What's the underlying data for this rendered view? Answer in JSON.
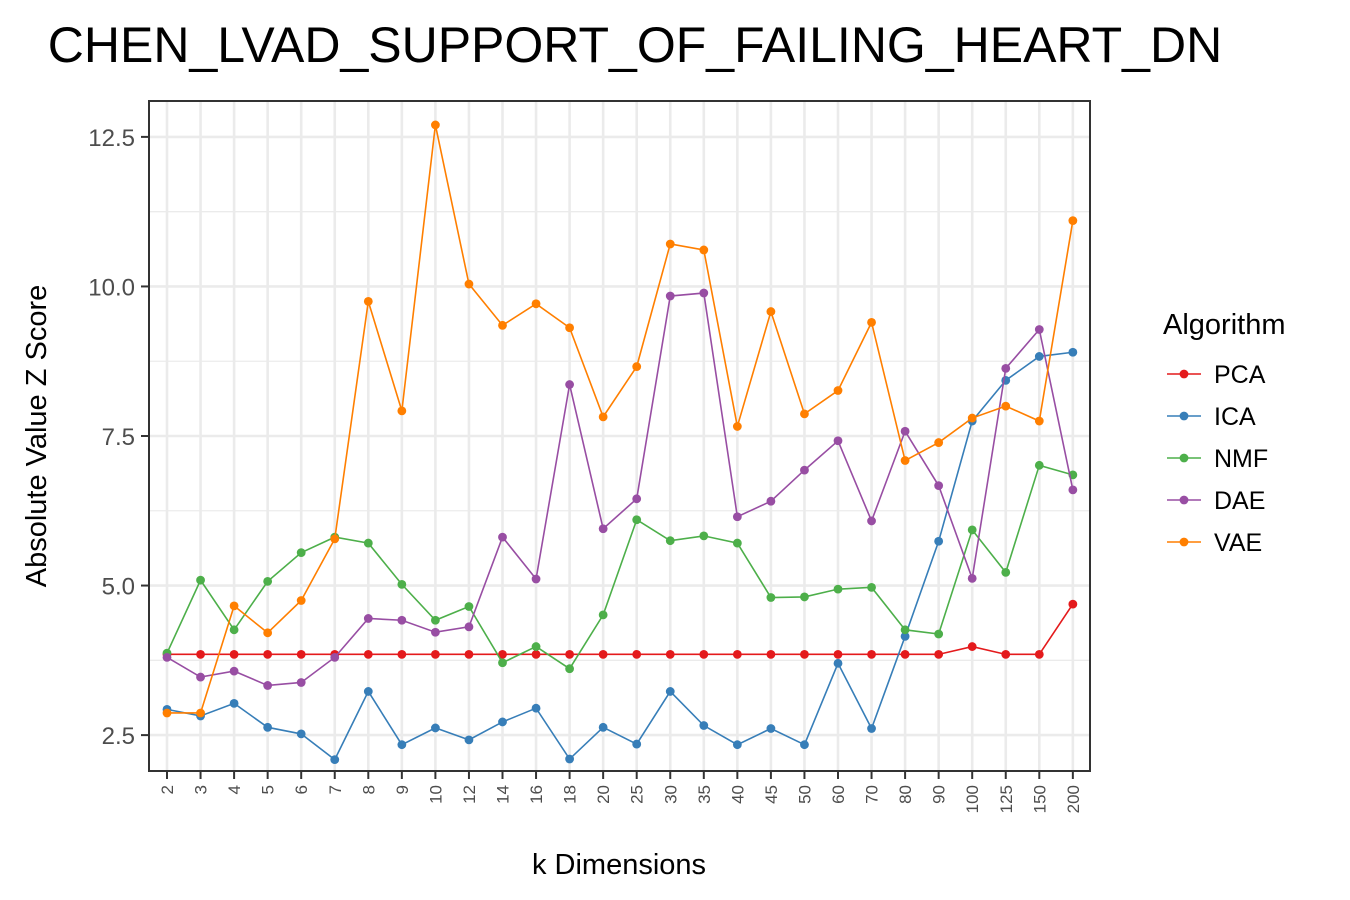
{
  "chart_data": {
    "type": "line",
    "title": "CHEN_LVAD_SUPPORT_OF_FAILING_HEART_DN",
    "xlabel": "k Dimensions",
    "ylabel": "Absolute Value Z Score",
    "categories": [
      "2",
      "3",
      "4",
      "5",
      "6",
      "7",
      "8",
      "9",
      "10",
      "12",
      "14",
      "16",
      "18",
      "20",
      "25",
      "30",
      "35",
      "40",
      "45",
      "50",
      "60",
      "70",
      "80",
      "90",
      "100",
      "125",
      "150",
      "200"
    ],
    "ylim": [
      1.9,
      13.1
    ],
    "yticks": [
      2.5,
      5.0,
      7.5,
      10.0,
      12.5
    ],
    "ytick_labels": [
      "2.5",
      "5.0",
      "7.5",
      "10.0",
      "12.5"
    ],
    "grid": true,
    "legend_title": "Algorithm",
    "legend_position": "right",
    "series": [
      {
        "name": "PCA",
        "color": "#e41a1c",
        "values": [
          3.85,
          3.85,
          3.85,
          3.85,
          3.85,
          3.85,
          3.85,
          3.85,
          3.85,
          3.85,
          3.85,
          3.85,
          3.85,
          3.85,
          3.85,
          3.85,
          3.85,
          3.85,
          3.85,
          3.85,
          3.85,
          3.85,
          3.85,
          3.85,
          3.98,
          3.85,
          3.85,
          4.69
        ]
      },
      {
        "name": "ICA",
        "color": "#377eb8",
        "values": [
          2.93,
          2.82,
          3.03,
          2.63,
          2.52,
          2.09,
          3.23,
          2.34,
          2.62,
          2.42,
          2.72,
          2.95,
          2.1,
          2.63,
          2.35,
          3.23,
          2.66,
          2.34,
          2.61,
          2.34,
          3.7,
          2.61,
          4.15,
          5.74,
          7.75,
          8.43,
          8.83,
          8.9
        ]
      },
      {
        "name": "NMF",
        "color": "#4daf4a",
        "values": [
          3.87,
          5.09,
          4.26,
          5.07,
          5.55,
          5.81,
          5.71,
          5.02,
          4.42,
          4.65,
          3.71,
          3.98,
          3.61,
          4.51,
          6.1,
          5.75,
          5.83,
          5.71,
          4.8,
          4.81,
          4.94,
          4.97,
          4.26,
          4.19,
          5.93,
          5.22,
          7.01,
          6.85
        ]
      },
      {
        "name": "DAE",
        "color": "#984ea3",
        "values": [
          3.8,
          3.47,
          3.57,
          3.33,
          3.38,
          3.8,
          4.45,
          4.42,
          4.22,
          4.31,
          5.81,
          5.11,
          8.36,
          5.95,
          6.45,
          9.84,
          9.89,
          6.15,
          6.41,
          6.93,
          7.42,
          6.08,
          7.58,
          6.67,
          5.12,
          8.63,
          9.28,
          6.6
        ]
      },
      {
        "name": "VAE",
        "color": "#ff7f00",
        "values": [
          2.87,
          2.87,
          4.66,
          4.21,
          4.75,
          5.78,
          9.75,
          7.92,
          12.7,
          10.04,
          9.35,
          9.71,
          9.31,
          7.82,
          8.66,
          10.71,
          10.61,
          7.66,
          9.58,
          7.87,
          8.26,
          9.4,
          7.09,
          7.39,
          7.8,
          8.0,
          7.75,
          11.1
        ]
      }
    ]
  }
}
